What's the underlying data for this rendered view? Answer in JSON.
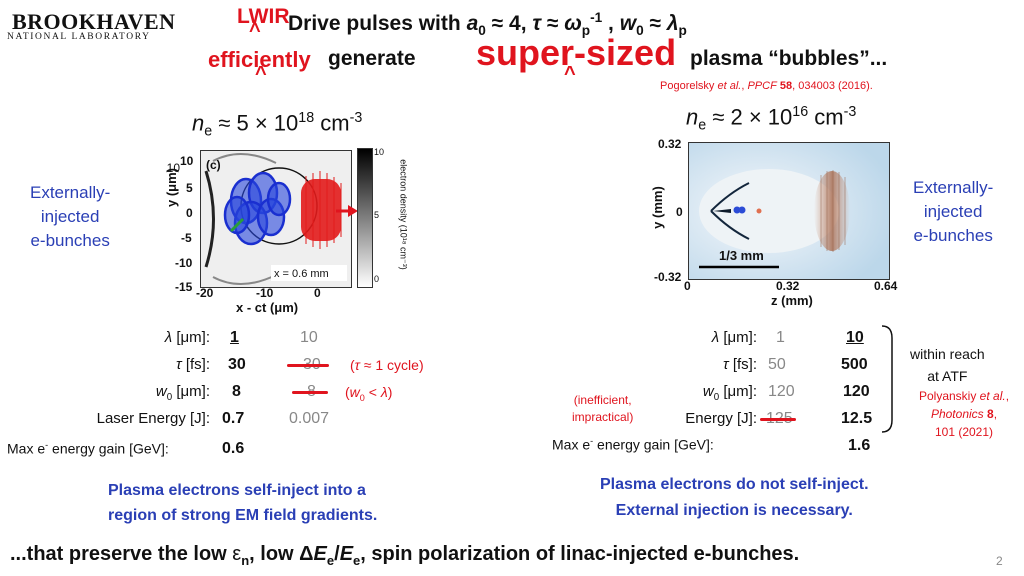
{
  "logo": {
    "main": "BROOKHAVEN",
    "sub": "NATIONAL LABORATORY"
  },
  "header": {
    "line1": "Drive pulses with a₀ ≈ 4, τ ≈ ωₚ⁻¹ , w₀ ≈ λₚ",
    "generate": "generate",
    "plasma": "plasma “bubbles”...",
    "ann_lwir": "LWIR",
    "ann_efficiently": "efficiently",
    "ann_supersized": "super-sized",
    "caret": "^"
  },
  "citation_top": {
    "authors": "Pogorelsky ",
    "etal": "et al.",
    "journal": "PPCF",
    "volume": "58",
    "rest": ", 034003 (2016)."
  },
  "left": {
    "density": {
      "base": "n",
      "sub": "e",
      "mid": " ≈ 5 × 10",
      "exp": "18",
      "unit": " cm",
      "unit_exp": "-3"
    },
    "annot": "Externally-\ninjected\ne-bunches",
    "sim": {
      "label": "(c)",
      "scale": "x = 0.6 mm",
      "y_axis": "y (μm)",
      "x_axis": "x - ct (μm)",
      "y_ticks": [
        "10",
        "5",
        "0",
        "-5",
        "-10",
        "-15"
      ],
      "x_ticks": [
        "-20",
        "-10",
        "0"
      ],
      "colorbar_ticks": [
        "10",
        "5",
        "0"
      ],
      "colorbar_label": "electron density (10¹⁸ cm⁻³)"
    },
    "table": {
      "labels": [
        "λ [μm]:",
        "τ [fs]:",
        "w₀ [μm]:",
        "Laser Energy [J]:",
        "Max e⁻ energy gain [GeV]:"
      ],
      "col1": [
        "1",
        "30",
        "8",
        "0.7",
        "0.6"
      ],
      "col2": [
        "10",
        "30",
        "8",
        "0.007"
      ],
      "note_tau": "(τ ≈ 1 cycle)",
      "note_w0": "(w₀ < λ)"
    },
    "caption": "Plasma electrons self-inject into a\nregion of strong EM field gradients."
  },
  "right": {
    "density": {
      "base": "n",
      "sub": "e",
      "mid": " ≈ 2 × 10",
      "exp": "16",
      "unit": " cm",
      "unit_exp": "-3"
    },
    "annot": "Externally-\ninjected\ne-bunches",
    "sim": {
      "y_axis": "y (mm)",
      "x_axis": "z (mm)",
      "y_ticks": [
        "0.32",
        "0",
        "-0.32"
      ],
      "x_ticks": [
        "0",
        "0.32",
        "0.64"
      ],
      "scale": "1/3 mm"
    },
    "table": {
      "labels": [
        "λ [μm]:",
        "τ [fs]:",
        "w₀ [μm]:",
        "Energy [J]:",
        "Max e⁻ energy gain [GeV]:"
      ],
      "col1": [
        "1",
        "50",
        "120",
        "125"
      ],
      "col2": [
        "10",
        "500",
        "120",
        "12.5",
        "1.6"
      ],
      "note_ineff": "(inefficient,\nimpractical)"
    },
    "reach": "within reach\nat ATF",
    "reach_cite": {
      "authors": "Polyanskiy ",
      "etal": "et al.",
      "journal": "Photonics ",
      "volume": "8",
      "rest": ",\n101 (2021)"
    },
    "caption": "Plasma electrons do not self-inject.\nExternal injection is necessary."
  },
  "footer": {
    "text_a": "...that preserve the low ",
    "eps": "ε",
    "eps_sub": "n",
    "text_b": ", low Δ",
    "E": "E",
    "e_sub": "e",
    "slash": "/",
    "E2": "E",
    "e2_sub": "e",
    "text_c": ", spin polarization of linac-injected e-bunches.",
    "page": "2"
  },
  "colors": {
    "red": "#e0141e",
    "blue": "#2a3fb5",
    "bubble_blue": "#1f3fd6"
  }
}
